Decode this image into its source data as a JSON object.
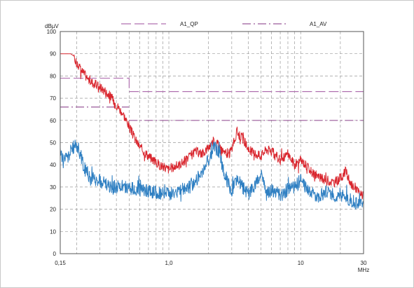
{
  "chart_data": {
    "type": "line",
    "title": "",
    "ylabel": "dBµV",
    "xlabel": "MHz",
    "x_scale": "log",
    "xlim": [
      0.15,
      30
    ],
    "ylim": [
      0,
      100
    ],
    "grid": true,
    "legend_position": "top",
    "x_ticks": [
      {
        "value": 0.15,
        "label": "0,15"
      },
      {
        "value": 1.0,
        "label": "1,0"
      },
      {
        "value": 10,
        "label": "10"
      },
      {
        "value": 30,
        "label": "30"
      }
    ],
    "y_ticks": [
      {
        "value": 0,
        "label": "0"
      },
      {
        "value": 10,
        "label": "10"
      },
      {
        "value": 20,
        "label": "20"
      },
      {
        "value": 30,
        "label": "30"
      },
      {
        "value": 40,
        "label": "40"
      },
      {
        "value": 50,
        "label": "50"
      },
      {
        "value": 60,
        "label": "60"
      },
      {
        "value": 70,
        "label": "70"
      },
      {
        "value": 80,
        "label": "80"
      },
      {
        "value": 90,
        "label": "90"
      },
      {
        "value": 100,
        "label": "100"
      }
    ],
    "limit_lines": [
      {
        "name": "A1_QP",
        "color": "#b070b0",
        "dash": "long",
        "segments": [
          {
            "x": [
              0.15,
              0.5
            ],
            "y": [
              79,
              79
            ]
          },
          {
            "x": [
              0.5,
              0.5
            ],
            "y": [
              79,
              73
            ]
          },
          {
            "x": [
              0.5,
              30
            ],
            "y": [
              73,
              73
            ]
          }
        ]
      },
      {
        "name": "A1_AV",
        "color": "#9a5a9a",
        "dash": "dashdot",
        "segments": [
          {
            "x": [
              0.15,
              0.5
            ],
            "y": [
              66,
              66
            ]
          },
          {
            "x": [
              0.5,
              30
            ],
            "y": [
              60,
              60
            ]
          }
        ]
      }
    ],
    "series": [
      {
        "color": "#d9262e",
        "x": [
          0.15,
          0.18,
          0.19,
          0.2,
          0.21,
          0.22,
          0.25,
          0.28,
          0.3,
          0.33,
          0.36,
          0.4,
          0.45,
          0.5,
          0.55,
          0.6,
          0.7,
          0.8,
          0.9,
          1.0,
          1.2,
          1.4,
          1.6,
          1.8,
          2.0,
          2.2,
          2.4,
          2.6,
          2.8,
          3.0,
          3.3,
          3.6,
          3.8,
          4.0,
          4.5,
          5.0,
          5.5,
          6.0,
          7.0,
          8.0,
          9.0,
          10,
          11,
          12,
          14,
          16,
          18,
          20,
          22,
          24,
          26,
          28,
          30
        ],
        "y": [
          90,
          90,
          89,
          86,
          84,
          82,
          78,
          76,
          75,
          73,
          71,
          67,
          63,
          57,
          52,
          48,
          44,
          41,
          39,
          38,
          40,
          43,
          46,
          45,
          48,
          51,
          49,
          46,
          44,
          47,
          55,
          52,
          50,
          47,
          45,
          44,
          47,
          46,
          42,
          45,
          40,
          42,
          40,
          37,
          34,
          33,
          32,
          34,
          37,
          31,
          30,
          27,
          26
        ],
        "noise": 2.2
      },
      {
        "color": "#2e7fc2",
        "x": [
          0.15,
          0.16,
          0.17,
          0.18,
          0.19,
          0.2,
          0.21,
          0.22,
          0.23,
          0.25,
          0.28,
          0.32,
          0.38,
          0.45,
          0.55,
          0.65,
          0.75,
          0.85,
          1.0,
          1.2,
          1.4,
          1.6,
          1.8,
          2.0,
          2.2,
          2.4,
          2.6,
          2.8,
          3.0,
          3.3,
          3.6,
          4.0,
          4.5,
          5.0,
          5.5,
          6.0,
          7.0,
          8.0,
          9.0,
          10,
          11,
          12,
          14,
          16,
          18,
          20,
          22,
          24,
          26,
          28,
          30
        ],
        "y": [
          45,
          43,
          43,
          46,
          48,
          49,
          46,
          42,
          38,
          35,
          33,
          32,
          30,
          30,
          29,
          28,
          28,
          27,
          27,
          28,
          30,
          33,
          37,
          42,
          48,
          46,
          38,
          32,
          28,
          34,
          30,
          27,
          31,
          36,
          27,
          29,
          26,
          29,
          30,
          33,
          30,
          27,
          26,
          28,
          26,
          27,
          25,
          24,
          23,
          22,
          21
        ],
        "noise": 3.2
      }
    ]
  }
}
